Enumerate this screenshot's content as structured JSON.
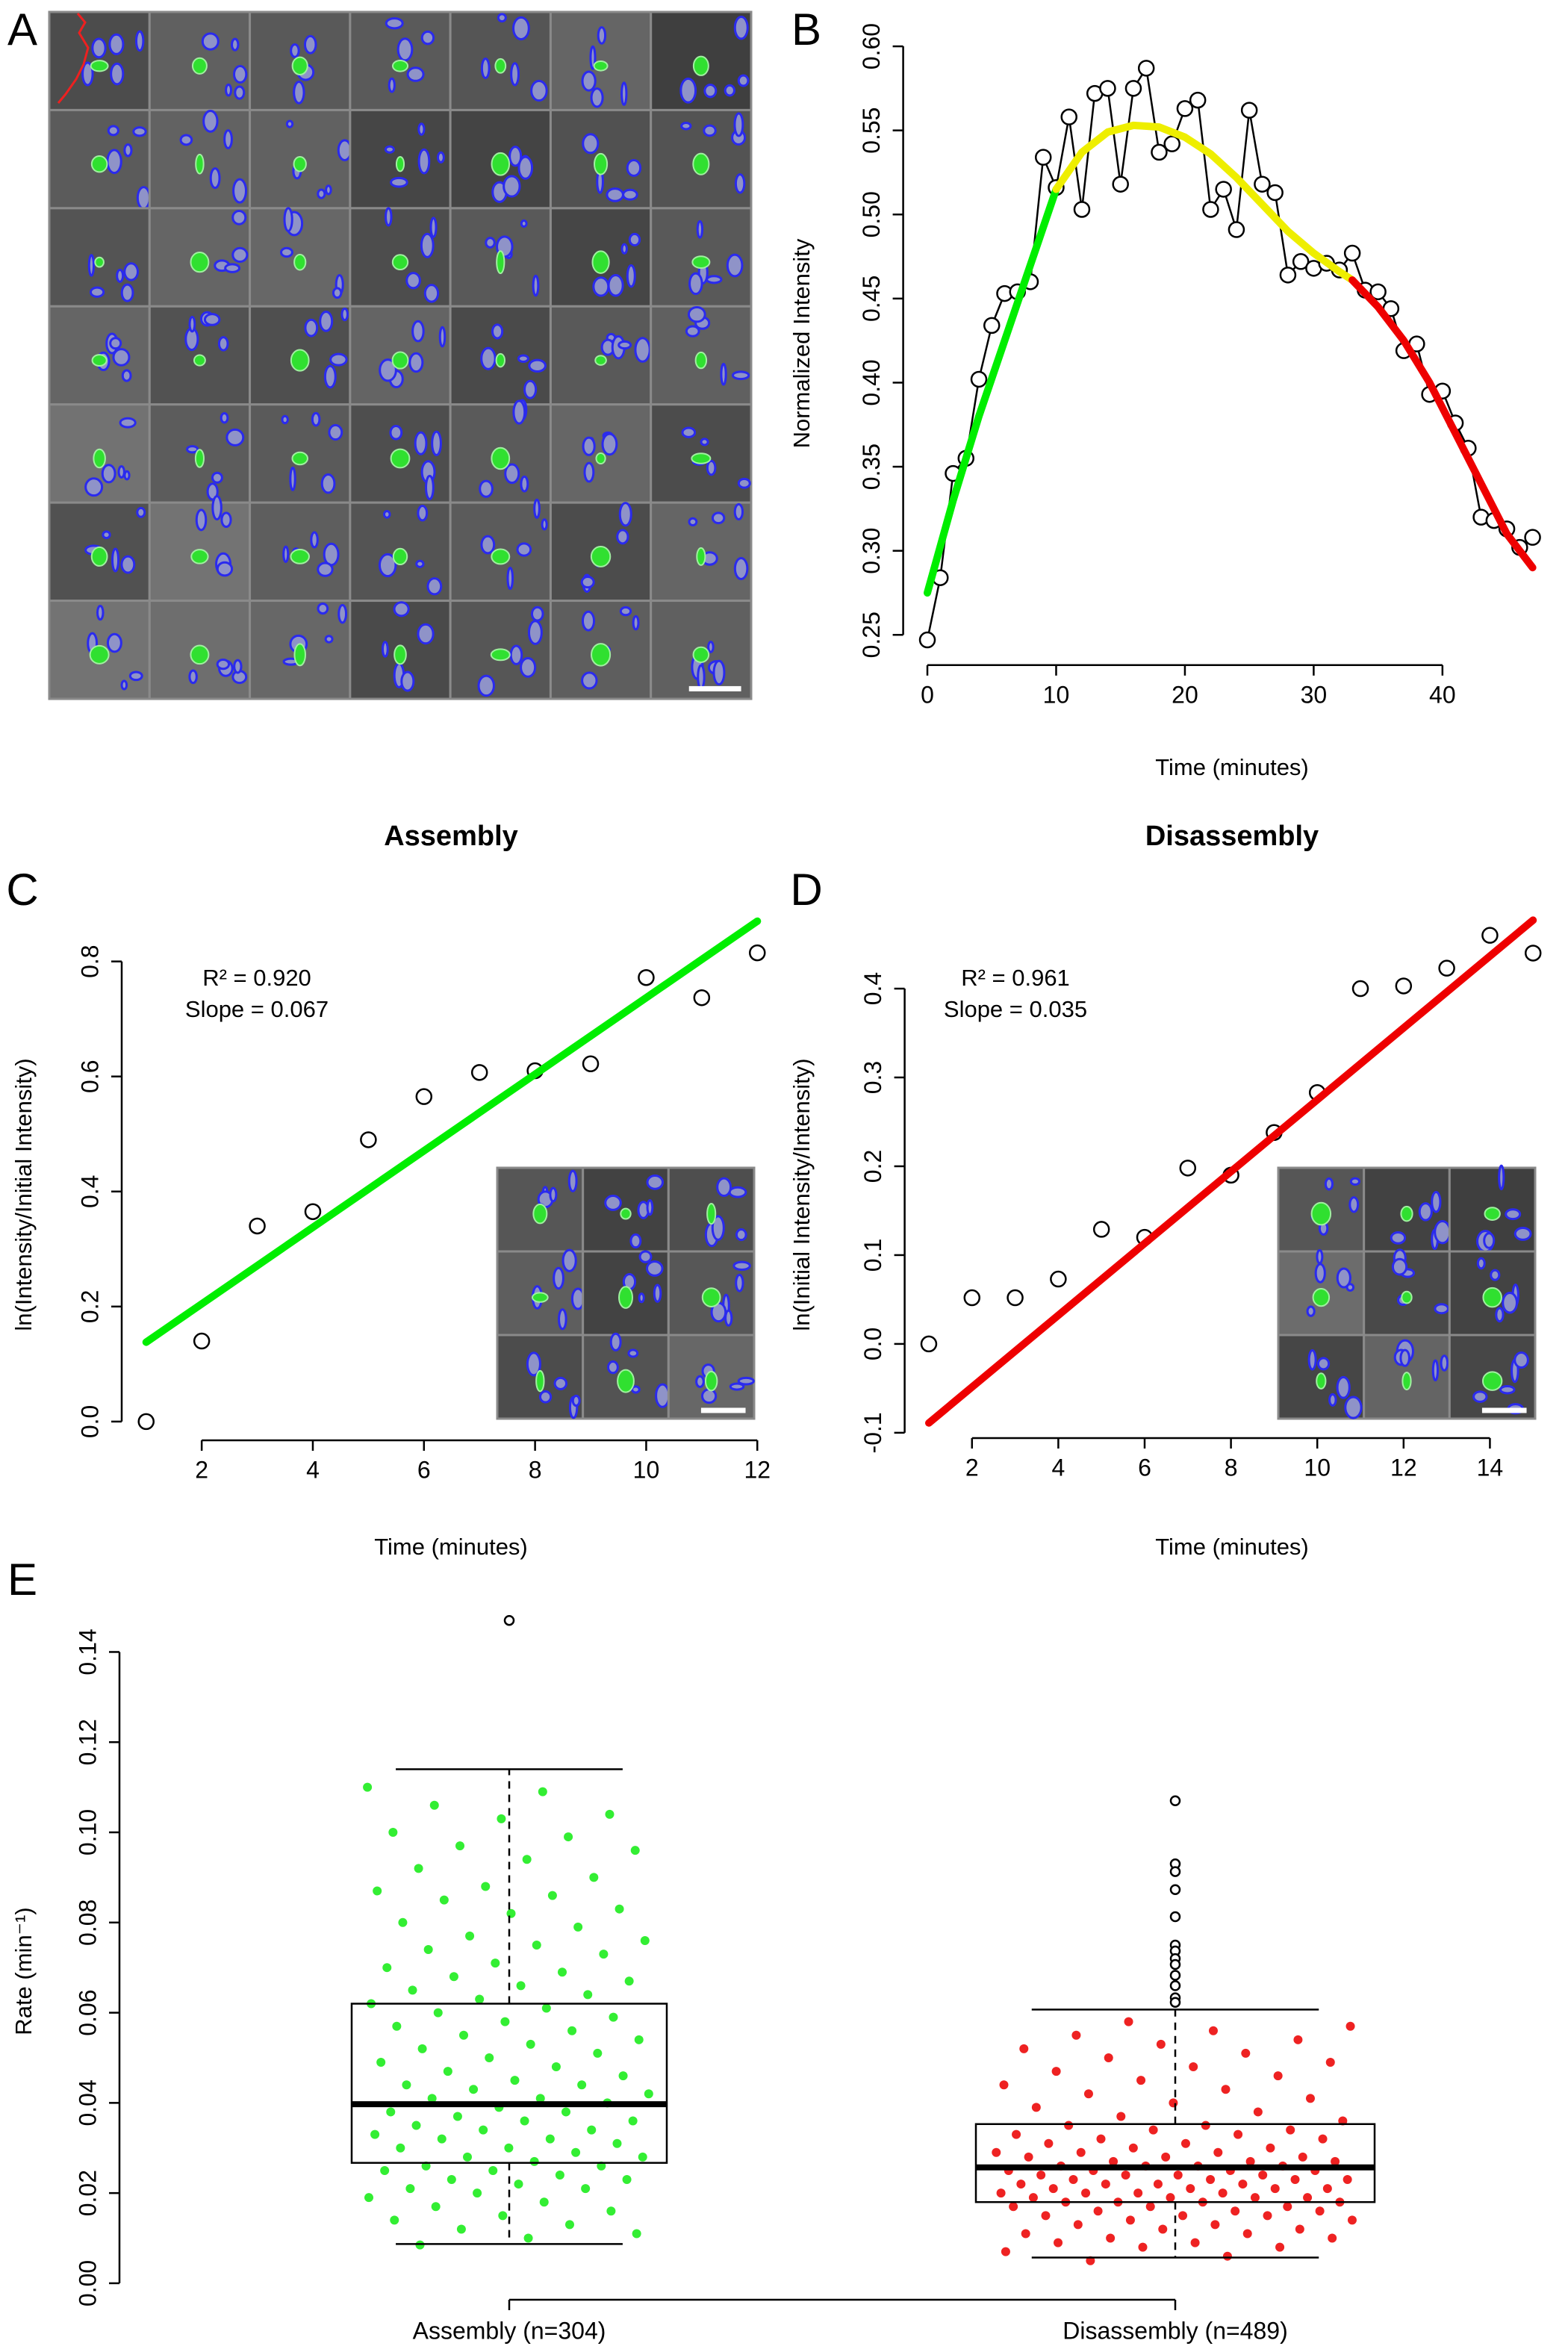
{
  "image_panel": {
    "label": "A"
  },
  "chart_data": [
    {
      "panel": "B",
      "type": "line",
      "xlabel": "Time (minutes)",
      "ylabel": "Normalized Intensity",
      "xlim": [
        -1.88,
        48.88
      ],
      "ylim": [
        0.232,
        0.601
      ],
      "xticks": [
        0,
        10,
        20,
        30,
        40
      ],
      "yticks": [
        0.25,
        {
          "value": 0.3,
          "label": "0.30"
        },
        0.35,
        {
          "value": 0.4,
          "label": "0.40"
        },
        0.45,
        {
          "value": 0.5,
          "label": "0.50"
        },
        0.55,
        {
          "value": 0.6,
          "label": "0.60"
        }
      ],
      "series": [
        {
          "color": "#000000",
          "marker": "circle",
          "line": true,
          "x": [
            0,
            1,
            2,
            3,
            4,
            5,
            6,
            7,
            8,
            9,
            10,
            11,
            12,
            13,
            14,
            15,
            16,
            17,
            18,
            19,
            20,
            21,
            22,
            23,
            24,
            25,
            26,
            27,
            28,
            29,
            30,
            31,
            32,
            33,
            34,
            35,
            36,
            37,
            38,
            39,
            40,
            41,
            42,
            43,
            44,
            45,
            46,
            47
          ],
          "values": [
            0.247,
            0.284,
            0.346,
            0.355,
            0.402,
            0.434,
            0.453,
            0.454,
            0.46,
            0.534,
            0.516,
            0.558,
            0.503,
            0.572,
            0.575,
            0.518,
            0.575,
            0.587,
            0.537,
            0.542,
            0.563,
            0.568,
            0.503,
            0.515,
            0.491,
            0.562,
            0.518,
            0.513,
            0.464,
            0.472,
            0.468,
            0.471,
            0.467,
            0.477,
            0.455,
            0.454,
            0.444,
            0.419,
            0.423,
            0.393,
            0.395,
            0.376,
            0.361,
            0.32,
            0.318,
            0.313,
            0.302,
            0.308
          ]
        },
        {
          "color": "#00ee00",
          "x": [
            0,
            2,
            4,
            6,
            8,
            10
          ],
          "values": [
            0.275,
            0.33,
            0.38,
            0.425,
            0.47,
            0.515
          ]
        },
        {
          "color": "#eeee00",
          "x": [
            10,
            12,
            14,
            16,
            18,
            20,
            22,
            24,
            26,
            28,
            30,
            32,
            33
          ],
          "values": [
            0.515,
            0.537,
            0.549,
            0.553,
            0.552,
            0.546,
            0.536,
            0.522,
            0.506,
            0.49,
            0.477,
            0.466,
            0.461
          ]
        },
        {
          "color": "#ee0000",
          "x": [
            33,
            35,
            37,
            39,
            41,
            43,
            45,
            47
          ],
          "values": [
            0.461,
            0.445,
            0.425,
            0.4,
            0.37,
            0.34,
            0.31,
            0.29
          ]
        }
      ]
    },
    {
      "panel": "C",
      "type": "scatter",
      "title": "Assembly",
      "xlabel": "Time (minutes)",
      "ylabel": "ln(Intensity/Initial Intensity)",
      "annotations": [
        "R² = 0.920",
        "Slope = 0.067"
      ],
      "xlim": [
        0.56,
        12.44
      ],
      "ylim": [
        -0.0326,
        0.8476
      ],
      "xticks": [
        2,
        4,
        6,
        8,
        10,
        12
      ],
      "yticks": [
        {
          "value": 0,
          "label": "0.0"
        },
        0.2,
        0.4,
        0.6,
        0.8
      ],
      "series": [
        {
          "color": "#000000",
          "marker": "circle",
          "x": [
            1,
            2,
            3,
            4,
            5,
            6,
            7,
            8,
            9,
            10,
            11,
            12
          ],
          "values": [
            0.0,
            0.14,
            0.34,
            0.365,
            0.49,
            0.565,
            0.607,
            0.61,
            0.622,
            0.772,
            0.737,
            0.815
          ]
        },
        {
          "color": "#00ee00",
          "x": [
            1,
            12
          ],
          "values": [
            0.138,
            0.87
          ]
        }
      ]
    },
    {
      "panel": "D",
      "type": "scatter",
      "title": "Disassembly",
      "xlabel": "Time (minutes)",
      "ylabel": "ln(Initial Intensity/Intensity)",
      "annotations": [
        "R² = 0.961",
        "Slope = 0.035"
      ],
      "xlim": [
        0.44,
        15.56
      ],
      "ylim": [
        -0.106,
        0.492
      ],
      "xticks": [
        2,
        4,
        6,
        8,
        10,
        12,
        14
      ],
      "yticks": [
        -0.1,
        {
          "value": 0,
          "label": "0.0"
        },
        0.1,
        0.2,
        0.3,
        0.4
      ],
      "series": [
        {
          "color": "#000000",
          "marker": "circle",
          "x": [
            1,
            2,
            3,
            4,
            5,
            6,
            7,
            8,
            9,
            10,
            11,
            12,
            13,
            14,
            15
          ],
          "values": [
            0.0,
            0.052,
            0.052,
            0.073,
            0.129,
            0.12,
            0.198,
            0.19,
            0.238,
            0.283,
            0.4,
            0.403,
            0.423,
            0.46,
            0.44
          ]
        },
        {
          "color": "#ee0000",
          "x": [
            1,
            15
          ],
          "values": [
            -0.089,
            0.477
          ]
        }
      ]
    },
    {
      "panel": "E",
      "type": "box",
      "ylabel": "Rate (min⁻¹)",
      "categories": [
        "Assembly (n=304)",
        "Disassembly (n=489)"
      ],
      "ylim": [
        -0.002,
        0.152
      ],
      "yticks": [
        {
          "value": 0,
          "label": "0.00"
        },
        0.02,
        0.04,
        0.06,
        0.08,
        {
          "value": 0.1,
          "label": "0.10"
        },
        0.12,
        0.14
      ],
      "boxes": [
        {
          "whisker_low": 0.0087,
          "q1": 0.0267,
          "median": 0.0397,
          "q3": 0.062,
          "whisker_high": 0.114,
          "outliers": [
            0.147
          ]
        },
        {
          "whisker_low": 0.0057,
          "q1": 0.018,
          "median": 0.0257,
          "q3": 0.0353,
          "whisker_high": 0.0607,
          "outliers": [
            0.107,
            0.093,
            0.0913,
            0.0873,
            0.0813,
            0.075,
            0.0737,
            0.072,
            0.0707,
            0.0683,
            0.066,
            0.0633,
            0.0623
          ]
        }
      ],
      "points": [
        {
          "color": "#33ee33",
          "values": [
            0.11,
            0.109,
            0.106,
            0.104,
            0.103,
            0.1,
            0.099,
            0.097,
            0.096,
            0.094,
            0.092,
            0.09,
            0.088,
            0.087,
            0.086,
            0.085,
            0.083,
            0.082,
            0.08,
            0.079,
            0.077,
            0.076,
            0.075,
            0.074,
            0.073,
            0.071,
            0.07,
            0.069,
            0.068,
            0.067,
            0.066,
            0.065,
            0.064,
            0.063,
            0.062,
            0.061,
            0.06,
            0.059,
            0.058,
            0.057,
            0.056,
            0.055,
            0.054,
            0.053,
            0.052,
            0.051,
            0.05,
            0.049,
            0.048,
            0.047,
            0.046,
            0.045,
            0.044,
            0.044,
            0.043,
            0.042,
            0.041,
            0.041,
            0.04,
            0.039,
            0.038,
            0.038,
            0.037,
            0.036,
            0.036,
            0.035,
            0.034,
            0.034,
            0.033,
            0.032,
            0.032,
            0.031,
            0.03,
            0.03,
            0.029,
            0.028,
            0.028,
            0.027,
            0.026,
            0.026,
            0.025,
            0.025,
            0.024,
            0.023,
            0.023,
            0.022,
            0.021,
            0.021,
            0.02,
            0.019,
            0.018,
            0.017,
            0.016,
            0.015,
            0.014,
            0.013,
            0.012,
            0.011,
            0.01,
            0.0085
          ]
        },
        {
          "color": "#ee2222",
          "values": [
            0.058,
            0.057,
            0.056,
            0.055,
            0.054,
            0.053,
            0.052,
            0.051,
            0.05,
            0.049,
            0.048,
            0.047,
            0.046,
            0.045,
            0.044,
            0.043,
            0.042,
            0.041,
            0.04,
            0.039,
            0.038,
            0.037,
            0.036,
            0.035,
            0.035,
            0.034,
            0.034,
            0.033,
            0.033,
            0.032,
            0.032,
            0.031,
            0.031,
            0.03,
            0.03,
            0.029,
            0.029,
            0.029,
            0.028,
            0.028,
            0.028,
            0.027,
            0.027,
            0.027,
            0.026,
            0.026,
            0.026,
            0.026,
            0.025,
            0.025,
            0.025,
            0.025,
            0.024,
            0.024,
            0.024,
            0.024,
            0.023,
            0.023,
            0.023,
            0.023,
            0.022,
            0.022,
            0.022,
            0.022,
            0.021,
            0.021,
            0.021,
            0.021,
            0.02,
            0.02,
            0.02,
            0.02,
            0.019,
            0.019,
            0.019,
            0.019,
            0.018,
            0.018,
            0.018,
            0.018,
            0.017,
            0.017,
            0.017,
            0.016,
            0.016,
            0.016,
            0.015,
            0.015,
            0.015,
            0.014,
            0.014,
            0.013,
            0.013,
            0.012,
            0.012,
            0.011,
            0.011,
            0.01,
            0.01,
            0.009,
            0.009,
            0.008,
            0.008,
            0.007,
            0.006,
            0.005
          ]
        }
      ]
    }
  ]
}
